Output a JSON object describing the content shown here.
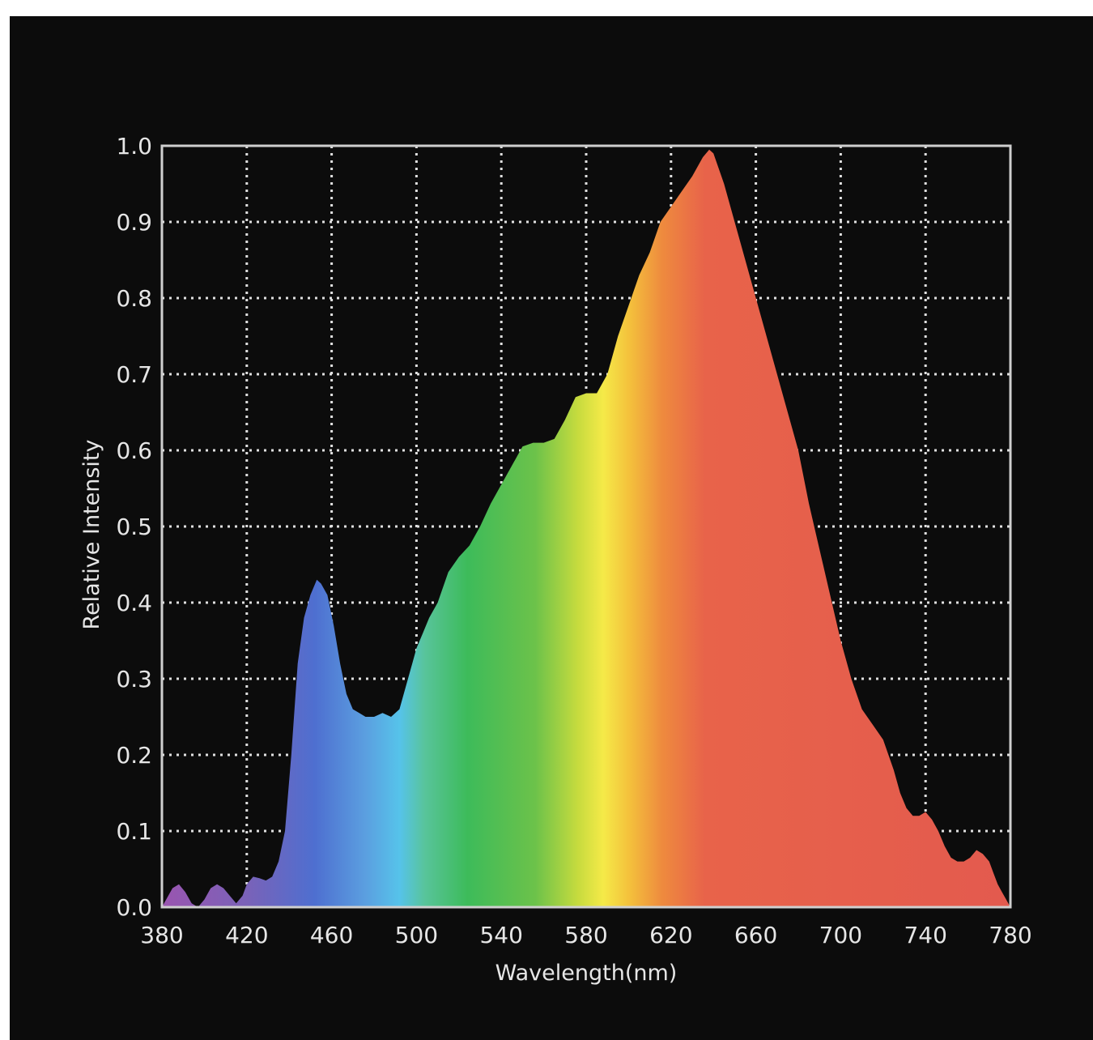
{
  "chart_data": {
    "type": "area",
    "xlabel": "Wavelength(nm)",
    "ylabel": "Relative Intensity",
    "xlim": [
      380,
      780
    ],
    "ylim": [
      0.0,
      1.0
    ],
    "x_ticks": [
      "380",
      "420",
      "460",
      "500",
      "540",
      "580",
      "620",
      "660",
      "700",
      "740",
      "780"
    ],
    "y_ticks": [
      "0.0",
      "0.1",
      "0.2",
      "0.3",
      "0.4",
      "0.5",
      "0.6",
      "0.7",
      "0.8",
      "0.9",
      "1.0"
    ],
    "grid": true,
    "background_color": "#0c0c0c",
    "fill": "visible-spectrum gradient",
    "series": [
      {
        "x": [
          380,
          382,
          385,
          388,
          391,
          394,
          397,
          400,
          403,
          406,
          409,
          412,
          415,
          418,
          420,
          423,
          426,
          429,
          432,
          435,
          438,
          441,
          444,
          447,
          450,
          453,
          455,
          458,
          461,
          464,
          467,
          470,
          473,
          476,
          480,
          484,
          488,
          492,
          495,
          498,
          500,
          503,
          506,
          510,
          515,
          520,
          525,
          530,
          535,
          540,
          545,
          550,
          555,
          560,
          565,
          570,
          575,
          580,
          585,
          590,
          595,
          600,
          605,
          610,
          615,
          620,
          625,
          630,
          635,
          638,
          640,
          645,
          650,
          655,
          660,
          665,
          670,
          675,
          680,
          685,
          690,
          695,
          700,
          705,
          710,
          715,
          720,
          725,
          728,
          731,
          734,
          737,
          740,
          743,
          746,
          749,
          752,
          755,
          758,
          761,
          764,
          767,
          770,
          772,
          774,
          776,
          778,
          780
        ],
        "y": [
          0.0,
          0.01,
          0.025,
          0.03,
          0.02,
          0.005,
          0.0,
          0.01,
          0.025,
          0.03,
          0.025,
          0.015,
          0.005,
          0.015,
          0.03,
          0.04,
          0.038,
          0.035,
          0.04,
          0.06,
          0.1,
          0.2,
          0.32,
          0.38,
          0.41,
          0.43,
          0.425,
          0.41,
          0.37,
          0.32,
          0.28,
          0.26,
          0.255,
          0.25,
          0.25,
          0.255,
          0.25,
          0.26,
          0.29,
          0.32,
          0.34,
          0.36,
          0.38,
          0.4,
          0.44,
          0.46,
          0.475,
          0.5,
          0.53,
          0.555,
          0.58,
          0.605,
          0.61,
          0.61,
          0.615,
          0.64,
          0.67,
          0.675,
          0.675,
          0.7,
          0.75,
          0.79,
          0.83,
          0.86,
          0.9,
          0.92,
          0.94,
          0.96,
          0.985,
          0.995,
          0.99,
          0.95,
          0.9,
          0.85,
          0.8,
          0.75,
          0.7,
          0.65,
          0.6,
          0.53,
          0.47,
          0.41,
          0.35,
          0.3,
          0.26,
          0.24,
          0.22,
          0.18,
          0.15,
          0.13,
          0.12,
          0.12,
          0.125,
          0.115,
          0.1,
          0.08,
          0.065,
          0.06,
          0.06,
          0.065,
          0.075,
          0.07,
          0.06,
          0.045,
          0.03,
          0.02,
          0.01,
          0.0
        ]
      }
    ]
  }
}
